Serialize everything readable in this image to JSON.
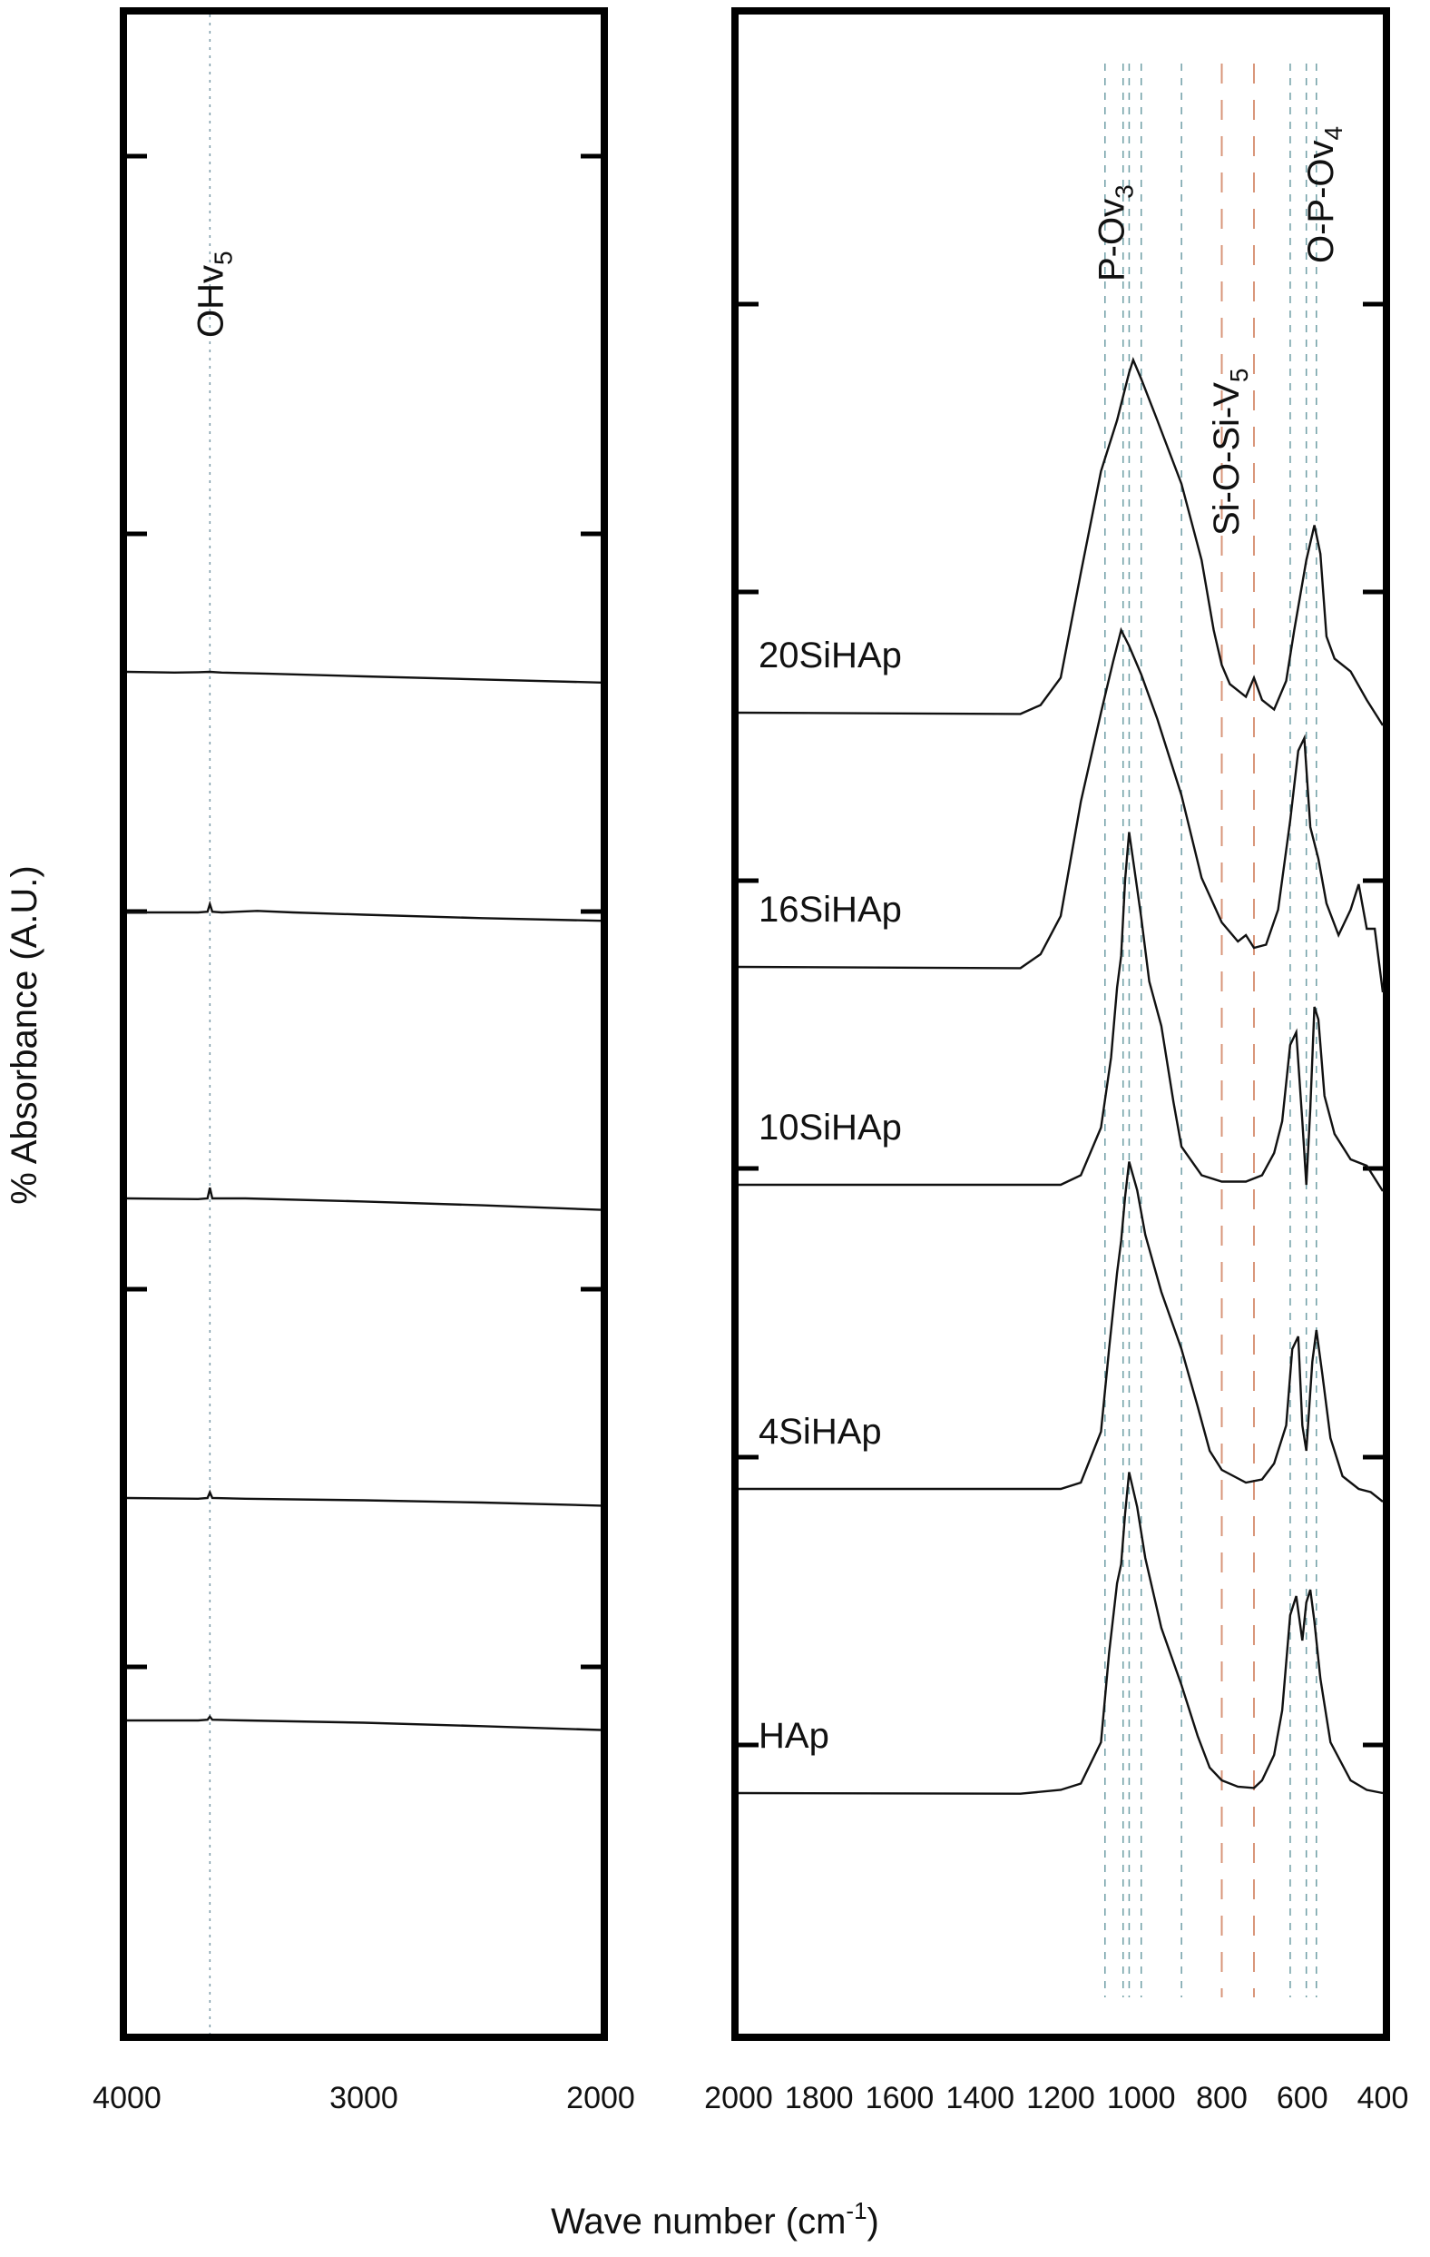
{
  "figure": {
    "ylabel": "% Absorbance (A.U.)",
    "xlabel_main": "Wave number (cm",
    "xlabel_sup": "-1",
    "xlabel_close": ")"
  },
  "chart_data": [
    {
      "type": "line",
      "panel": "left",
      "xlim": [
        4000,
        2000
      ],
      "xticks": [
        {
          "value": 4000,
          "label": "4000"
        },
        {
          "value": 3000,
          "label": "3000"
        },
        {
          "value": 2000,
          "label": "2000"
        }
      ],
      "annotations": [
        {
          "text": "OHv",
          "sub": "5",
          "x": 3650
        }
      ],
      "series": [
        {
          "offset": 5,
          "points": [
            [
              4000,
              0
            ],
            [
              3800,
              -0.02
            ],
            [
              3700,
              -0.01
            ],
            [
              3650,
              0.0
            ],
            [
              3600,
              -0.02
            ],
            [
              3400,
              -0.05
            ],
            [
              3000,
              -0.12
            ],
            [
              2500,
              -0.2
            ],
            [
              2000,
              -0.28
            ]
          ]
        },
        {
          "offset": 4,
          "points": [
            [
              4000,
              0
            ],
            [
              3700,
              0.0
            ],
            [
              3660,
              0.02
            ],
            [
              3650,
              0.22
            ],
            [
              3640,
              0.02
            ],
            [
              3600,
              0.0
            ],
            [
              3450,
              0.04
            ],
            [
              3300,
              0.0
            ],
            [
              3000,
              -0.06
            ],
            [
              2500,
              -0.15
            ],
            [
              2000,
              -0.22
            ]
          ]
        },
        {
          "offset": 3,
          "points": [
            [
              4000,
              0
            ],
            [
              3700,
              -0.02
            ],
            [
              3660,
              0.0
            ],
            [
              3650,
              0.28
            ],
            [
              3640,
              0.0
            ],
            [
              3500,
              0.0
            ],
            [
              3000,
              -0.08
            ],
            [
              2500,
              -0.18
            ],
            [
              2000,
              -0.3
            ]
          ]
        },
        {
          "offset": 2,
          "points": [
            [
              4000,
              0
            ],
            [
              3700,
              -0.02
            ],
            [
              3660,
              0.0
            ],
            [
              3650,
              0.15
            ],
            [
              3640,
              0.0
            ],
            [
              3500,
              -0.02
            ],
            [
              3000,
              -0.06
            ],
            [
              2500,
              -0.12
            ],
            [
              2000,
              -0.2
            ]
          ]
        },
        {
          "offset": 1,
          "points": [
            [
              4000,
              0
            ],
            [
              3700,
              0.0
            ],
            [
              3660,
              0.02
            ],
            [
              3650,
              0.1
            ],
            [
              3640,
              0.02
            ],
            [
              3500,
              0.0
            ],
            [
              3000,
              -0.06
            ],
            [
              2500,
              -0.15
            ],
            [
              2000,
              -0.25
            ]
          ]
        }
      ]
    },
    {
      "type": "line",
      "panel": "right",
      "xlim": [
        2000,
        400
      ],
      "xticks": [
        {
          "value": 2000,
          "label": "2000"
        },
        {
          "value": 1800,
          "label": "1800"
        },
        {
          "value": 1600,
          "label": "1600"
        },
        {
          "value": 1400,
          "label": "1400"
        },
        {
          "value": 1200,
          "label": "1200"
        },
        {
          "value": 1000,
          "label": "1000"
        },
        {
          "value": 800,
          "label": "800"
        },
        {
          "value": 600,
          "label": "600"
        },
        {
          "value": 400,
          "label": "400"
        }
      ],
      "annotations": [
        {
          "text": "P-Ov",
          "sub": "3",
          "x": 1075
        },
        {
          "text": "Si-O-Si-V",
          "sub": "5",
          "x": 790
        },
        {
          "text": "O-P-Ov",
          "sub": "4",
          "x": 555
        }
      ],
      "reference_lines": [
        {
          "x": 1090,
          "style": "blue-dash"
        },
        {
          "x": 1045,
          "style": "blue-dash"
        },
        {
          "x": 1030,
          "style": "blue-dash"
        },
        {
          "x": 1000,
          "style": "blue-dash"
        },
        {
          "x": 900,
          "style": "blue-dash"
        },
        {
          "x": 800,
          "style": "orange-dash"
        },
        {
          "x": 720,
          "style": "orange-dash"
        },
        {
          "x": 630,
          "style": "blue-dash"
        },
        {
          "x": 590,
          "style": "blue-dash"
        },
        {
          "x": 565,
          "style": "blue-dash"
        }
      ],
      "series": [
        {
          "name": "20SiHAp",
          "offset": 5,
          "points": [
            [
              2000,
              0
            ],
            [
              1300,
              -0.02
            ],
            [
              1250,
              0.12
            ],
            [
              1200,
              0.55
            ],
            [
              1150,
              2.2
            ],
            [
              1100,
              3.8
            ],
            [
              1060,
              4.6
            ],
            [
              1030,
              5.35
            ],
            [
              1020,
              5.55
            ],
            [
              1000,
              5.25
            ],
            [
              960,
              4.6
            ],
            [
              900,
              3.6
            ],
            [
              850,
              2.4
            ],
            [
              820,
              1.3
            ],
            [
              800,
              0.75
            ],
            [
              780,
              0.45
            ],
            [
              740,
              0.25
            ],
            [
              720,
              0.55
            ],
            [
              700,
              0.2
            ],
            [
              670,
              0.05
            ],
            [
              640,
              0.5
            ],
            [
              620,
              1.3
            ],
            [
              590,
              2.4
            ],
            [
              570,
              2.95
            ],
            [
              555,
              2.5
            ],
            [
              540,
              1.2
            ],
            [
              520,
              0.85
            ],
            [
              480,
              0.65
            ],
            [
              440,
              0.2
            ],
            [
              410,
              -0.1
            ],
            [
              400,
              -0.2
            ]
          ]
        },
        {
          "name": "16SiHAp",
          "offset": 4,
          "points": [
            [
              2000,
              0
            ],
            [
              1300,
              -0.02
            ],
            [
              1250,
              0.2
            ],
            [
              1200,
              0.8
            ],
            [
              1150,
              2.6
            ],
            [
              1100,
              4.0
            ],
            [
              1070,
              4.8
            ],
            [
              1050,
              5.3
            ],
            [
              1030,
              5.05
            ],
            [
              1000,
              4.6
            ],
            [
              960,
              3.9
            ],
            [
              900,
              2.7
            ],
            [
              850,
              1.4
            ],
            [
              800,
              0.7
            ],
            [
              760,
              0.4
            ],
            [
              740,
              0.5
            ],
            [
              720,
              0.3
            ],
            [
              690,
              0.35
            ],
            [
              660,
              0.9
            ],
            [
              630,
              2.3
            ],
            [
              610,
              3.4
            ],
            [
              595,
              3.6
            ],
            [
              580,
              2.2
            ],
            [
              560,
              1.7
            ],
            [
              540,
              1.0
            ],
            [
              510,
              0.5
            ],
            [
              480,
              0.9
            ],
            [
              460,
              1.3
            ],
            [
              440,
              0.6
            ],
            [
              420,
              0.6
            ],
            [
              400,
              -0.4
            ]
          ]
        },
        {
          "name": "10SiHAp",
          "offset": 3,
          "points": [
            [
              2000,
              0
            ],
            [
              1200,
              0.0
            ],
            [
              1150,
              0.15
            ],
            [
              1100,
              0.9
            ],
            [
              1075,
              2.0
            ],
            [
              1060,
              3.1
            ],
            [
              1050,
              3.6
            ],
            [
              1040,
              4.8
            ],
            [
              1030,
              5.55
            ],
            [
              1020,
              5.1
            ],
            [
              1000,
              4.2
            ],
            [
              980,
              3.2
            ],
            [
              950,
              2.5
            ],
            [
              920,
              1.3
            ],
            [
              900,
              0.6
            ],
            [
              850,
              0.15
            ],
            [
              800,
              0.05
            ],
            [
              740,
              0.05
            ],
            [
              700,
              0.15
            ],
            [
              670,
              0.5
            ],
            [
              650,
              1.0
            ],
            [
              630,
              2.2
            ],
            [
              615,
              2.4
            ],
            [
              600,
              1.0
            ],
            [
              590,
              0.0
            ],
            [
              580,
              1.2
            ],
            [
              570,
              2.8
            ],
            [
              560,
              2.6
            ],
            [
              545,
              1.4
            ],
            [
              520,
              0.8
            ],
            [
              480,
              0.4
            ],
            [
              440,
              0.3
            ],
            [
              400,
              -0.1
            ]
          ]
        },
        {
          "name": "4SiHAp",
          "offset": 2,
          "points": [
            [
              2000,
              0
            ],
            [
              1200,
              0.0
            ],
            [
              1150,
              0.1
            ],
            [
              1100,
              0.9
            ],
            [
              1080,
              2.2
            ],
            [
              1060,
              3.4
            ],
            [
              1050,
              3.9
            ],
            [
              1040,
              4.6
            ],
            [
              1030,
              5.15
            ],
            [
              1010,
              4.7
            ],
            [
              990,
              4.0
            ],
            [
              950,
              3.1
            ],
            [
              900,
              2.2
            ],
            [
              860,
              1.3
            ],
            [
              830,
              0.6
            ],
            [
              800,
              0.3
            ],
            [
              740,
              0.1
            ],
            [
              700,
              0.15
            ],
            [
              670,
              0.4
            ],
            [
              640,
              1.0
            ],
            [
              625,
              2.2
            ],
            [
              610,
              2.4
            ],
            [
              600,
              1.0
            ],
            [
              590,
              0.6
            ],
            [
              575,
              2.0
            ],
            [
              565,
              2.5
            ],
            [
              550,
              1.8
            ],
            [
              530,
              0.8
            ],
            [
              500,
              0.2
            ],
            [
              460,
              0.0
            ],
            [
              430,
              -0.05
            ],
            [
              400,
              -0.2
            ]
          ]
        },
        {
          "name": "HAp",
          "offset": 1,
          "points": [
            [
              2000,
              0
            ],
            [
              1300,
              -0.01
            ],
            [
              1200,
              0.05
            ],
            [
              1150,
              0.15
            ],
            [
              1100,
              0.8
            ],
            [
              1080,
              2.2
            ],
            [
              1060,
              3.3
            ],
            [
              1050,
              3.6
            ],
            [
              1040,
              4.4
            ],
            [
              1030,
              5.05
            ],
            [
              1010,
              4.5
            ],
            [
              990,
              3.7
            ],
            [
              950,
              2.6
            ],
            [
              900,
              1.7
            ],
            [
              860,
              0.9
            ],
            [
              830,
              0.4
            ],
            [
              800,
              0.2
            ],
            [
              760,
              0.1
            ],
            [
              720,
              0.08
            ],
            [
              700,
              0.2
            ],
            [
              670,
              0.6
            ],
            [
              650,
              1.3
            ],
            [
              630,
              2.8
            ],
            [
              615,
              3.1
            ],
            [
              600,
              2.4
            ],
            [
              590,
              3.0
            ],
            [
              580,
              3.2
            ],
            [
              570,
              2.7
            ],
            [
              555,
              1.8
            ],
            [
              530,
              0.8
            ],
            [
              480,
              0.2
            ],
            [
              440,
              0.05
            ],
            [
              400,
              0.0
            ]
          ]
        }
      ]
    }
  ]
}
